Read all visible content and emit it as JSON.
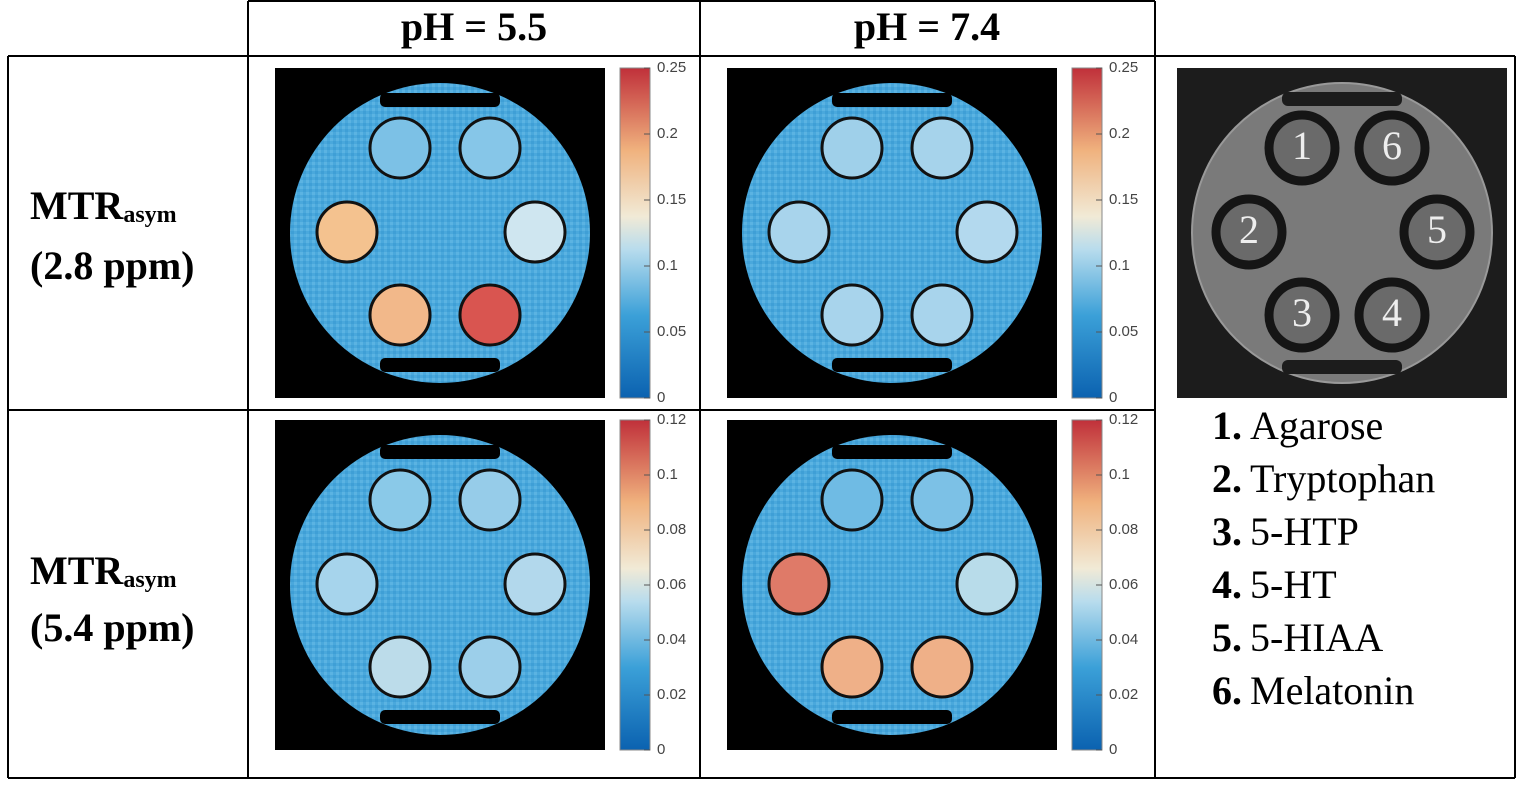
{
  "header": {
    "columns": [
      "pH = 5.5",
      "pH = 7.4"
    ]
  },
  "rows": [
    {
      "label": {
        "main": "MTR",
        "sub": "asym",
        "ppm": "(2.8 ppm)"
      },
      "colorbar_ticks": [
        0,
        0.05,
        0.1,
        0.15,
        0.2,
        0.25
      ]
    },
    {
      "label": {
        "main": "MTR",
        "sub": "asym",
        "ppm": "(5.4 ppm)"
      },
      "colorbar_ticks": [
        0,
        0.02,
        0.04,
        0.06,
        0.08,
        0.1,
        0.12
      ]
    }
  ],
  "legend": {
    "image_labels": [
      "1",
      "2",
      "3",
      "4",
      "5",
      "6"
    ],
    "items": [
      {
        "number": "1.",
        "name": "Agarose"
      },
      {
        "number": "2.",
        "name": "Tryptophan"
      },
      {
        "number": "3.",
        "name": "5-HTP"
      },
      {
        "number": "4.",
        "name": "5-HT"
      },
      {
        "number": "5.",
        "name": "5-HIAA"
      },
      {
        "number": "6.",
        "name": "Melatonin"
      }
    ]
  }
}
